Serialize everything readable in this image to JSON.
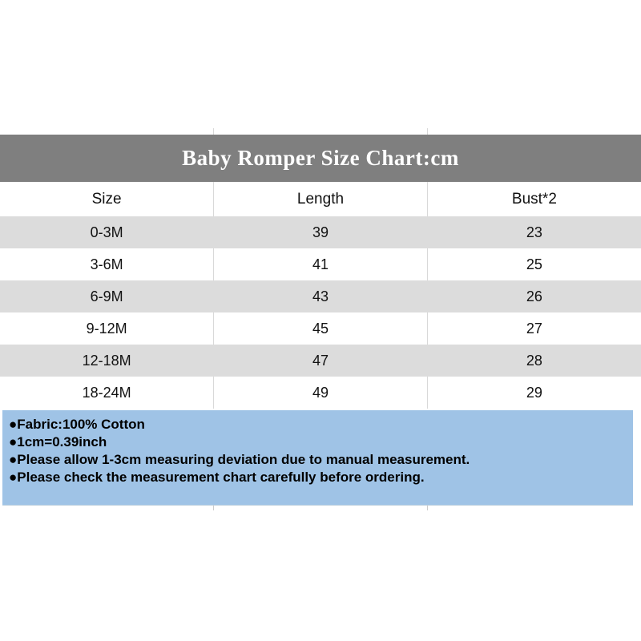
{
  "title": "Baby Romper Size Chart:cm",
  "notes": [
    "●Fabric:100% Cotton",
    "●1cm=0.39inch",
    "●Please allow 1-3cm measuring deviation due to manual measurement.",
    "●Please check the measurement chart carefully before ordering."
  ],
  "colors": {
    "title_band": "#7f7f7f",
    "title_text": "#ffffff",
    "row_stripe": "#dcdcdc",
    "notes_bg": "#9fc3e6",
    "grid_line": "#d9d9d9",
    "body_text": "#000000"
  },
  "chart_data": {
    "type": "table",
    "title": "Baby Romper Size Chart:cm",
    "unit": "cm",
    "columns": [
      "Size",
      "Length",
      "Bust*2"
    ],
    "rows": [
      [
        "0-3M",
        "39",
        "23"
      ],
      [
        "3-6M",
        "41",
        "25"
      ],
      [
        "6-9M",
        "43",
        "26"
      ],
      [
        "9-12M",
        "45",
        "27"
      ],
      [
        "12-18M",
        "47",
        "28"
      ],
      [
        "18-24M",
        "49",
        "29"
      ]
    ]
  }
}
